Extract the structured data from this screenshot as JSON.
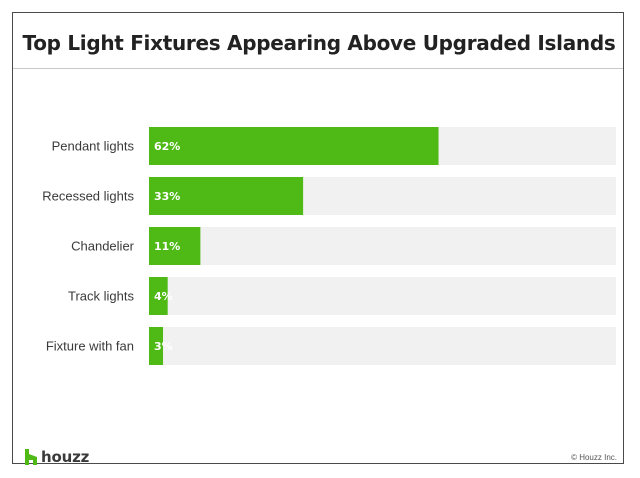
{
  "title": "Top Light Fixtures Appearing Above Upgraded Islands",
  "brand": "houzz",
  "copyright": "© Houzz Inc.",
  "colors": {
    "bar": "#4fba16",
    "track": "#f1f1f1",
    "label_text": "#ffffff",
    "brand_icon": "#4fba16"
  },
  "chart_data": {
    "type": "bar",
    "orientation": "horizontal",
    "title": "Top Light Fixtures Appearing Above Upgraded Islands",
    "categories": [
      "Pendant lights",
      "Recessed lights",
      "Chandelier",
      "Track lights",
      "Fixture with fan"
    ],
    "values": [
      62,
      33,
      11,
      4,
      3
    ],
    "value_labels": [
      "62%",
      "33%",
      "11%",
      "4%",
      "3%"
    ],
    "xlim": [
      0,
      100
    ],
    "unit": "%",
    "grid": false,
    "legend": "none"
  }
}
